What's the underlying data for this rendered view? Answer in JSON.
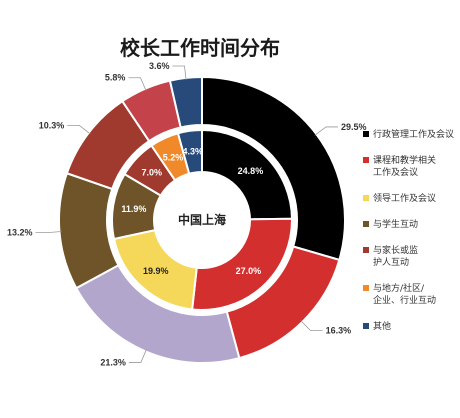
{
  "chart_data": {
    "type": "pie",
    "title": "校长工作时间分布",
    "center_label": "中国上海",
    "categories": [
      "行政管理工作及会议",
      "课程和教学相关工作及会议",
      "领导工作及会议",
      "与学生互动",
      "与家长或监护人互动",
      "与地方/社区/企业、行业互动",
      "其他"
    ],
    "legend_lines": [
      [
        "行政管理工作及会议"
      ],
      [
        "课程和教学相关",
        "工作及会议"
      ],
      [
        "领导工作及会议"
      ],
      [
        "与学生互动"
      ],
      [
        "与家长或监",
        "护人互动"
      ],
      [
        "与地方/社区/",
        "企业、行业互动"
      ],
      [
        "其他"
      ]
    ],
    "series": [
      {
        "ring": "outer",
        "values": [
          29.5,
          16.3,
          21.3,
          13.2,
          10.3,
          5.8,
          3.6
        ],
        "labels": [
          "29.5%",
          "16.3%",
          "21.3%",
          "13.2%",
          "10.3%",
          "5.8%",
          "3.6%"
        ]
      },
      {
        "ring": "inner",
        "region": "中国上海",
        "values": [
          24.8,
          27.0,
          19.9,
          11.9,
          7.0,
          5.2,
          4.3
        ],
        "labels": [
          "24.8%",
          "27.0%",
          "19.9%",
          "11.9%",
          "7.0%",
          "5.2%",
          "4.3%"
        ]
      }
    ],
    "colors": {
      "outer": [
        "#000000",
        "#d32f2f",
        "#b3a6cc",
        "#6e5428",
        "#a13a2e",
        "#c4434b",
        "#274a7b"
      ],
      "inner": [
        "#000000",
        "#d32f2f",
        "#f5d85a",
        "#6e5428",
        "#a13a2e",
        "#f0892a",
        "#274a7b"
      ],
      "legend": [
        "#000000",
        "#d32f2f",
        "#f5d85a",
        "#6e5428",
        "#a13a2e",
        "#f0892a",
        "#274a7b"
      ]
    },
    "legend_position": "right"
  }
}
